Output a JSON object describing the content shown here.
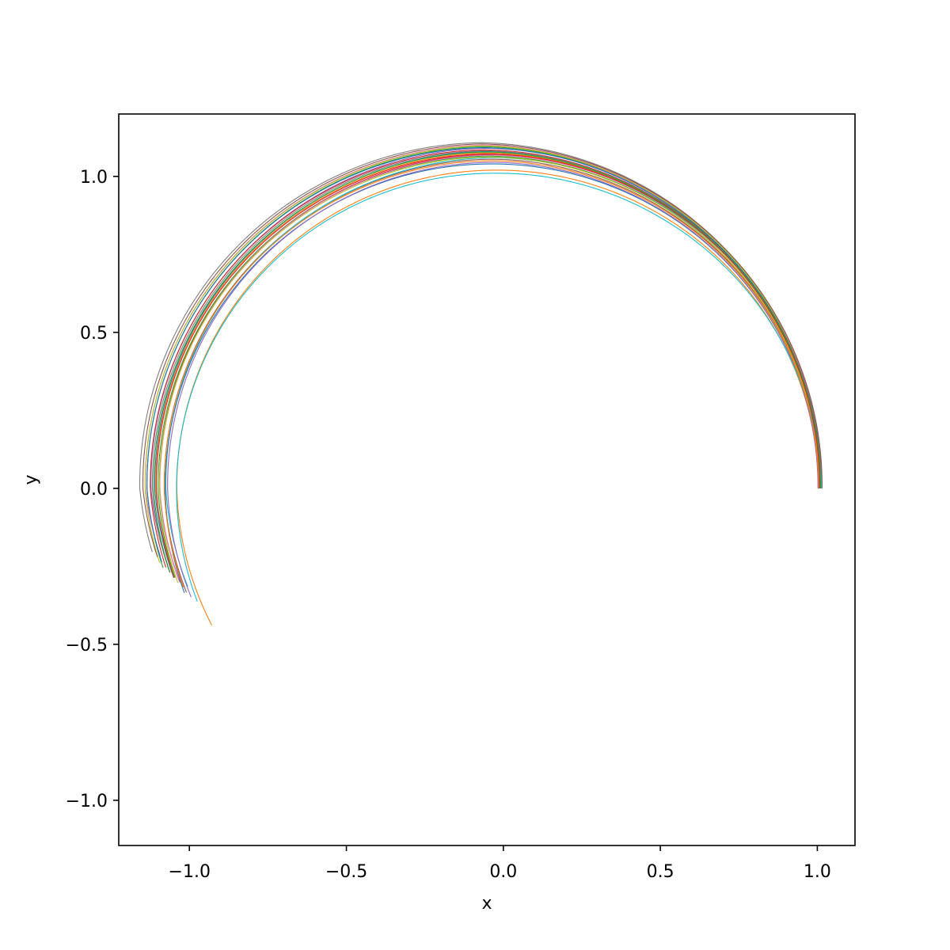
{
  "chart_data": {
    "type": "line",
    "title": "",
    "xlabel": "x",
    "ylabel": "y",
    "xlim": [
      -1.225,
      1.12
    ],
    "ylim": [
      -1.145,
      1.2
    ],
    "grid": false,
    "legend": "none",
    "x_ticks": [
      {
        "value": -1.0,
        "label": "−1.0"
      },
      {
        "value": -0.5,
        "label": "−0.5"
      },
      {
        "value": 0.0,
        "label": "0.0"
      },
      {
        "value": 0.5,
        "label": "0.5"
      },
      {
        "value": 1.0,
        "label": "1.0"
      }
    ],
    "y_ticks": [
      {
        "value": 1.0,
        "label": "1.0"
      },
      {
        "value": 0.5,
        "label": "0.5"
      },
      {
        "value": 0.0,
        "label": "0.0"
      },
      {
        "value": -0.5,
        "label": "−0.5"
      },
      {
        "value": -1.0,
        "label": "−1.0"
      }
    ],
    "trajectory_model": {
      "description": "spiral trajectories starting near (1.0, 0) moving counterclockwise, approximate read-off of ensemble",
      "start_x_range": [
        1.0,
        1.015
      ],
      "turn_end_angle_deg_range": [
        191,
        206
      ],
      "center_x_range": [
        -0.075,
        -0.02
      ],
      "radius_start_range": [
        1.02,
        1.07
      ],
      "radius_end_range": [
        0.97,
        1.11
      ]
    },
    "series": [
      {
        "color": "#1f77b4",
        "start_x": 1.01,
        "center_x": -0.05,
        "r_start": 1.06,
        "r_top": 1.08,
        "r_bottom": 1.04,
        "end_angle_deg": 196
      },
      {
        "color": "#ff7f0e",
        "start_x": 1.005,
        "center_x": -0.03,
        "r_start": 1.035,
        "r_top": 1.02,
        "r_bottom": 1.0,
        "end_angle_deg": 206
      },
      {
        "color": "#2ca02c",
        "start_x": 1.012,
        "center_x": -0.06,
        "r_start": 1.065,
        "r_top": 1.095,
        "r_bottom": 1.055,
        "end_angle_deg": 194
      },
      {
        "color": "#d62728",
        "start_x": 1.008,
        "center_x": -0.045,
        "r_start": 1.055,
        "r_top": 1.07,
        "r_bottom": 1.03,
        "end_angle_deg": 197
      },
      {
        "color": "#9467bd",
        "start_x": 1.014,
        "center_x": -0.055,
        "r_start": 1.068,
        "r_top": 1.09,
        "r_bottom": 1.045,
        "end_angle_deg": 193
      },
      {
        "color": "#8c564b",
        "start_x": 1.003,
        "center_x": -0.04,
        "r_start": 1.045,
        "r_top": 1.055,
        "r_bottom": 1.025,
        "end_angle_deg": 199
      },
      {
        "color": "#e377c2",
        "start_x": 1.011,
        "center_x": -0.065,
        "r_start": 1.07,
        "r_top": 1.1,
        "r_bottom": 1.05,
        "end_angle_deg": 192
      },
      {
        "color": "#7f7f7f",
        "start_x": 1.006,
        "center_x": -0.07,
        "r_start": 1.075,
        "r_top": 1.108,
        "r_bottom": 1.068,
        "end_angle_deg": 191
      },
      {
        "color": "#bcbd22",
        "start_x": 1.009,
        "center_x": -0.062,
        "r_start": 1.066,
        "r_top": 1.098,
        "r_bottom": 1.06,
        "end_angle_deg": 193
      },
      {
        "color": "#17becf",
        "start_x": 1.013,
        "center_x": -0.035,
        "r_start": 1.048,
        "r_top": 1.06,
        "r_bottom": 1.02,
        "end_angle_deg": 198
      },
      {
        "color": "#1f77b4",
        "start_x": 1.004,
        "center_x": -0.042,
        "r_start": 1.05,
        "r_top": 1.04,
        "r_bottom": 1.03,
        "end_angle_deg": 199
      },
      {
        "color": "#ff7f0e",
        "start_x": 1.01,
        "center_x": -0.052,
        "r_start": 1.058,
        "r_top": 1.075,
        "r_bottom": 1.035,
        "end_angle_deg": 195
      },
      {
        "color": "#2ca02c",
        "start_x": 1.007,
        "center_x": -0.048,
        "r_start": 1.052,
        "r_top": 1.065,
        "r_bottom": 1.038,
        "end_angle_deg": 196
      },
      {
        "color": "#d62728",
        "start_x": 1.012,
        "center_x": -0.058,
        "r_start": 1.062,
        "r_top": 1.085,
        "r_bottom": 1.048,
        "end_angle_deg": 194
      },
      {
        "color": "#9467bd",
        "start_x": 1.002,
        "center_x": -0.038,
        "r_start": 1.04,
        "r_top": 1.045,
        "r_bottom": 1.018,
        "end_angle_deg": 200
      },
      {
        "color": "#8c564b",
        "start_x": 1.015,
        "center_x": -0.067,
        "r_start": 1.072,
        "r_top": 1.104,
        "r_bottom": 1.058,
        "end_angle_deg": 192
      },
      {
        "color": "#e377c2",
        "start_x": 1.008,
        "center_x": -0.044,
        "r_start": 1.054,
        "r_top": 1.068,
        "r_bottom": 1.032,
        "end_angle_deg": 197
      },
      {
        "color": "#7f7f7f",
        "start_x": 1.011,
        "center_x": -0.056,
        "r_start": 1.06,
        "r_top": 1.082,
        "r_bottom": 1.042,
        "end_angle_deg": 195
      },
      {
        "color": "#bcbd22",
        "start_x": 1.006,
        "center_x": -0.046,
        "r_start": 1.053,
        "r_top": 1.062,
        "r_bottom": 1.036,
        "end_angle_deg": 197
      },
      {
        "color": "#17becf",
        "start_x": 1.013,
        "center_x": -0.03,
        "r_start": 1.03,
        "r_top": 1.01,
        "r_bottom": 1.012,
        "end_angle_deg": 201
      },
      {
        "color": "#1f77b4",
        "start_x": 1.009,
        "center_x": -0.063,
        "r_start": 1.067,
        "r_top": 1.092,
        "r_bottom": 1.052,
        "end_angle_deg": 193
      },
      {
        "color": "#ff7f0e",
        "start_x": 1.004,
        "center_x": -0.041,
        "r_start": 1.047,
        "r_top": 1.05,
        "r_bottom": 1.028,
        "end_angle_deg": 198
      },
      {
        "color": "#2ca02c",
        "start_x": 1.01,
        "center_x": -0.053,
        "r_start": 1.059,
        "r_top": 1.078,
        "r_bottom": 1.044,
        "end_angle_deg": 195
      },
      {
        "color": "#d62728",
        "start_x": 1.007,
        "center_x": -0.049,
        "r_start": 1.056,
        "r_top": 1.072,
        "r_bottom": 1.04,
        "end_angle_deg": 196
      }
    ]
  }
}
